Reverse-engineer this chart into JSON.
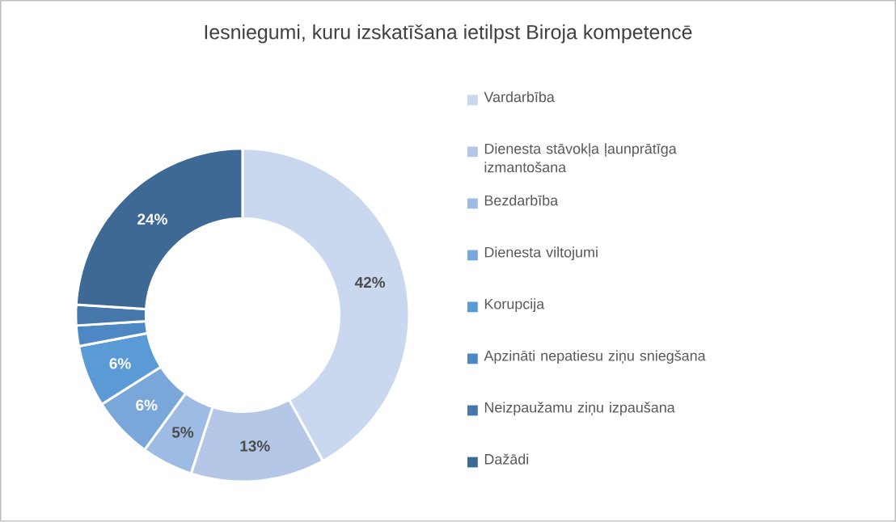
{
  "chart_data": {
    "type": "donut",
    "title": "Iesniegumi, kuru izskatīšana ietilpst Biroja kompetencē",
    "categories": [
      "Vardarbība",
      "Dienesta stāvokļa ļaunprātīga izmantošana",
      "Bezdarbība",
      "Dienesta viltojumi",
      "Korupcija",
      "Apzināti nepatiesu ziņu sniegšana",
      "Neizpaužamu ziņu izpaušana",
      "Dažādi"
    ],
    "values": [
      42,
      13,
      5,
      6,
      6,
      2,
      2,
      24
    ],
    "value_labels": [
      "42%",
      "13%",
      "5%",
      "6%",
      "6%",
      null,
      null,
      "24%"
    ],
    "colors": [
      "#c9d8ee",
      "#b4c7e7",
      "#9dbbe3",
      "#7aa7da",
      "#5b9bd5",
      "#4e88c4",
      "#4577aa",
      "#3e6995"
    ],
    "legend": "right"
  }
}
